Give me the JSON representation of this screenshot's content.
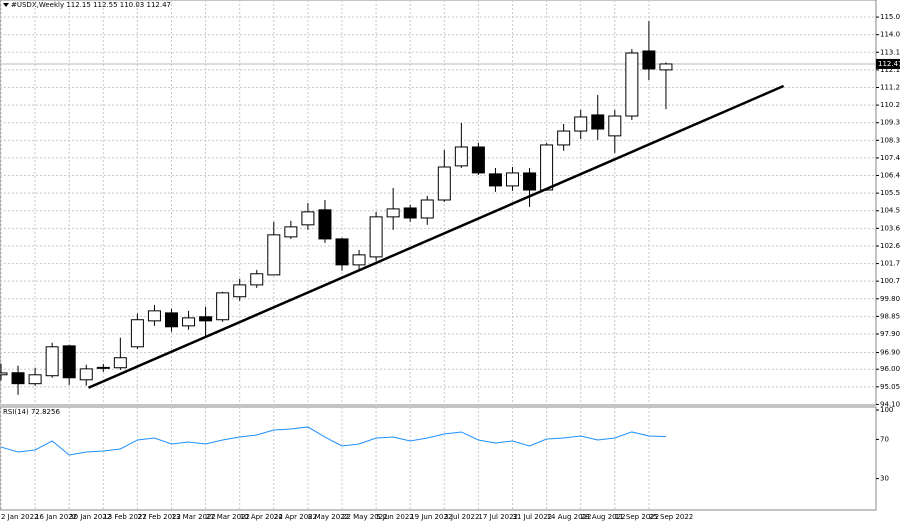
{
  "chart_data": [
    {
      "type": "candlestick",
      "title": "#USDX,Weekly  112.15 112.55 110.03 112.47",
      "categories": [
        "2 Jan 2022",
        null,
        "16 Jan 2022",
        null,
        "30 Jan 2022",
        null,
        "13 Feb 2022",
        null,
        "27 Feb 2022",
        null,
        "13 Mar 2022",
        null,
        "27 Mar 2022",
        null,
        "10 Apr 2022",
        null,
        "24 Apr 2022",
        null,
        "8 May 2022",
        null,
        "22 May 2022",
        null,
        "5 Jun 2022",
        null,
        "19 Jun 2022",
        null,
        "3 Jul 2022",
        null,
        "17 Jul 2022",
        null,
        "31 Jul 2022",
        null,
        "14 Aug 2022",
        null,
        "28 Aug 2022",
        null,
        "11 Sep 2022",
        null,
        "25 Sep 2022",
        null
      ],
      "open": [
        95.7,
        95.81,
        95.22,
        95.65,
        97.26,
        95.43,
        96.05,
        96.08,
        97.21,
        98.61,
        99.04,
        98.34,
        98.83,
        98.67,
        99.91,
        100.55,
        101.09,
        103.14,
        103.79,
        104.6,
        103.03,
        101.63,
        102.06,
        104.22,
        104.7,
        104.16,
        105.13,
        106.97,
        107.99,
        106.54,
        105.89,
        106.59,
        105.67,
        108.1,
        108.85,
        109.72,
        108.59,
        109.66,
        113.17,
        112.15
      ],
      "high": [
        96.3,
        96.19,
        96.08,
        97.43,
        97.32,
        96.24,
        96.29,
        97.7,
        99.0,
        99.47,
        99.26,
        99.15,
        99.37,
        100.18,
        100.88,
        101.36,
        103.95,
        104.0,
        104.97,
        105.13,
        103.09,
        102.44,
        104.49,
        105.78,
        104.87,
        105.35,
        107.83,
        109.29,
        108.21,
        106.86,
        106.91,
        106.86,
        108.21,
        109.23,
        109.99,
        110.8,
        109.99,
        113.27,
        114.78,
        112.55
      ],
      "low": [
        95.4,
        94.62,
        95.11,
        95.54,
        95.16,
        95.11,
        95.86,
        95.97,
        97.1,
        98.34,
        98.02,
        98.13,
        97.8,
        98.56,
        99.69,
        100.39,
        101.09,
        103.03,
        103.52,
        102.82,
        101.31,
        101.36,
        101.85,
        103.52,
        103.95,
        103.79,
        105.03,
        106.86,
        106.48,
        105.57,
        105.62,
        104.76,
        105.62,
        107.78,
        108.42,
        108.37,
        107.67,
        109.45,
        111.6,
        110.03
      ],
      "close": [
        95.8,
        95.22,
        95.7,
        97.21,
        95.54,
        96.02,
        96.1,
        96.62,
        98.67,
        99.15,
        98.29,
        98.77,
        98.61,
        100.12,
        100.55,
        101.15,
        103.25,
        103.68,
        104.49,
        103.03,
        101.63,
        102.17,
        104.22,
        104.65,
        104.16,
        105.13,
        106.91,
        107.99,
        106.59,
        105.89,
        106.59,
        105.67,
        108.1,
        108.85,
        109.61,
        108.96,
        109.66,
        113.06,
        112.2,
        112.47
      ],
      "up_color": "#ffffff",
      "down_color": "#000000",
      "ylim": [
        94.07,
        115.92
      ],
      "yticks": [
        {
          "value": 115,
          "label": "115.00"
        },
        114.05,
        {
          "value": 113.1,
          "label": "113.10"
        },
        112.15,
        {
          "value": 111.2,
          "label": "111.20"
        },
        110.25,
        {
          "value": 109.3,
          "label": "109.30"
        },
        108.35,
        {
          "value": 107.4,
          "label": "107.40"
        },
        106.45,
        {
          "value": 105.5,
          "label": "105.50"
        },
        104.55,
        {
          "value": 103.6,
          "label": "103.60"
        },
        102.65,
        {
          "value": 101.7,
          "label": "101.70"
        },
        100.75,
        {
          "value": 99.8,
          "label": "99.80"
        },
        98.85,
        {
          "value": 97.9,
          "label": "97.90"
        },
        {
          "value": 96.9,
          "label": "96.90"
        },
        {
          "value": 96,
          "label": "96.00"
        },
        95.05,
        {
          "value": 94.1,
          "label": "94.10"
        }
      ],
      "grid": true,
      "trendline": {
        "x": [
          5.13,
          45.9
        ],
        "y": [
          95.0,
          111.28
        ],
        "color": "#000000"
      }
    },
    {
      "type": "line",
      "title": "RSI(14) 72.8256",
      "color": "#1e90ff",
      "values": [
        62.2,
        57.1,
        59.2,
        68.4,
        54.1,
        57.1,
        58.2,
        60.2,
        69.4,
        71.4,
        65.3,
        67.3,
        65.3,
        69.4,
        72.4,
        74.5,
        79.6,
        80.6,
        82.7,
        72.4,
        63.3,
        65.3,
        71.4,
        72.4,
        68.4,
        71.4,
        75.5,
        77.6,
        69.4,
        66.3,
        68.4,
        63.3,
        70.4,
        71.4,
        73.5,
        69.4,
        71.4,
        77.6,
        73.5,
        72.8256
      ],
      "ylim": [
        0,
        100
      ],
      "yticks": [
        100,
        70,
        30
      ]
    }
  ]
}
